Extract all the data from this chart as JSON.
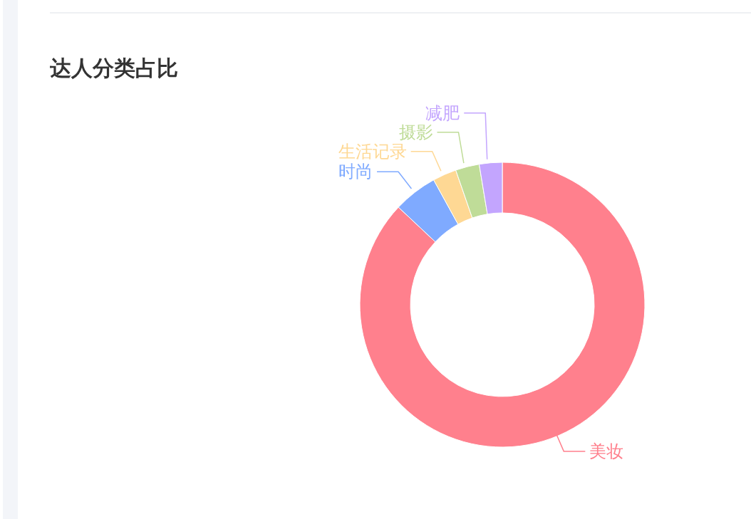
{
  "chart_data": {
    "type": "donut",
    "title": "达人分类占比",
    "categories": [
      "美妆",
      "时尚",
      "生活记录",
      "摄影",
      "减肥"
    ],
    "values": [
      87.0,
      5.0,
      2.7,
      2.7,
      2.6
    ],
    "colors": [
      "#ff808d",
      "#7faaff",
      "#fed894",
      "#bfdc98",
      "#c3a5fe"
    ]
  }
}
